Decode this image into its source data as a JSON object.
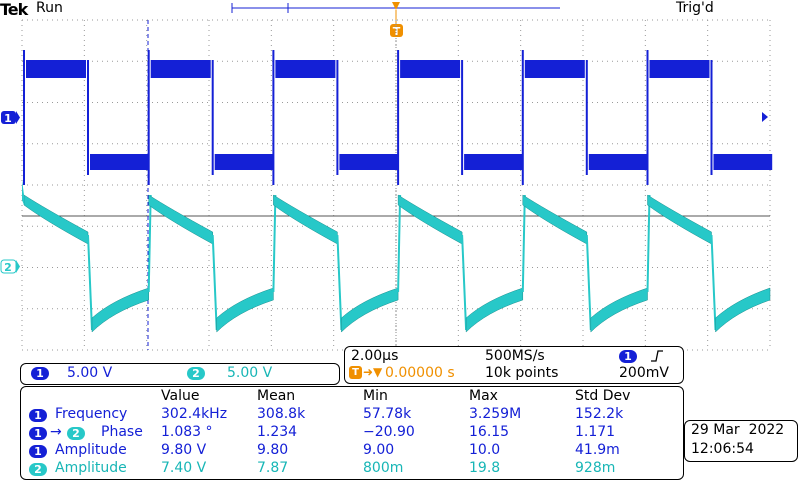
{
  "header": {
    "brand": "Tek",
    "run_state": "Run",
    "trigger_state": "Trig'd",
    "trigger_marker": "T"
  },
  "waveform": {
    "ch1_color": "#1420d6",
    "ch2_color": "#27c8c8",
    "ch1_marker": "1",
    "ch2_marker": "2"
  },
  "channels": {
    "ch1": {
      "label": "1",
      "scale": "5.00 V"
    },
    "ch2": {
      "label": "2",
      "scale": "5.00 V"
    }
  },
  "timebase": {
    "horizontal_scale": "2.00µs",
    "sample_rate": "500MS/s",
    "trigger_marker": "T",
    "trigger_position": "0.00000 s",
    "record_length": "10k points",
    "trigger_channel": "1",
    "trigger_slope_icon": "rising-edge-icon",
    "trigger_level": "200mV"
  },
  "measurements": {
    "headers": [
      "Value",
      "Mean",
      "Min",
      "Max",
      "Std Dev"
    ],
    "rows": [
      {
        "ch": "1",
        "name": "Frequency",
        "value": "302.4kHz",
        "mean": "308.8k",
        "min": "57.78k",
        "max": "3.259M",
        "std": "152.2k"
      },
      {
        "ch": "1",
        "ch2": "2",
        "arrow": "→",
        "name": "Phase",
        "value": "1.083 °",
        "mean": "1.234",
        "min": "−20.90",
        "max": "16.15",
        "std": "1.171"
      },
      {
        "ch": "1",
        "name": "Amplitude",
        "value": "9.80 V",
        "mean": "9.80",
        "min": "9.00",
        "max": "10.0",
        "std": "41.9m"
      },
      {
        "ch": "2",
        "name": "Amplitude",
        "value": "7.40 V",
        "mean": "7.87",
        "min": "800m",
        "max": "19.8",
        "std": "928m"
      }
    ]
  },
  "datetime": {
    "date": "29 Mar  2022",
    "time": "12:06:54"
  }
}
